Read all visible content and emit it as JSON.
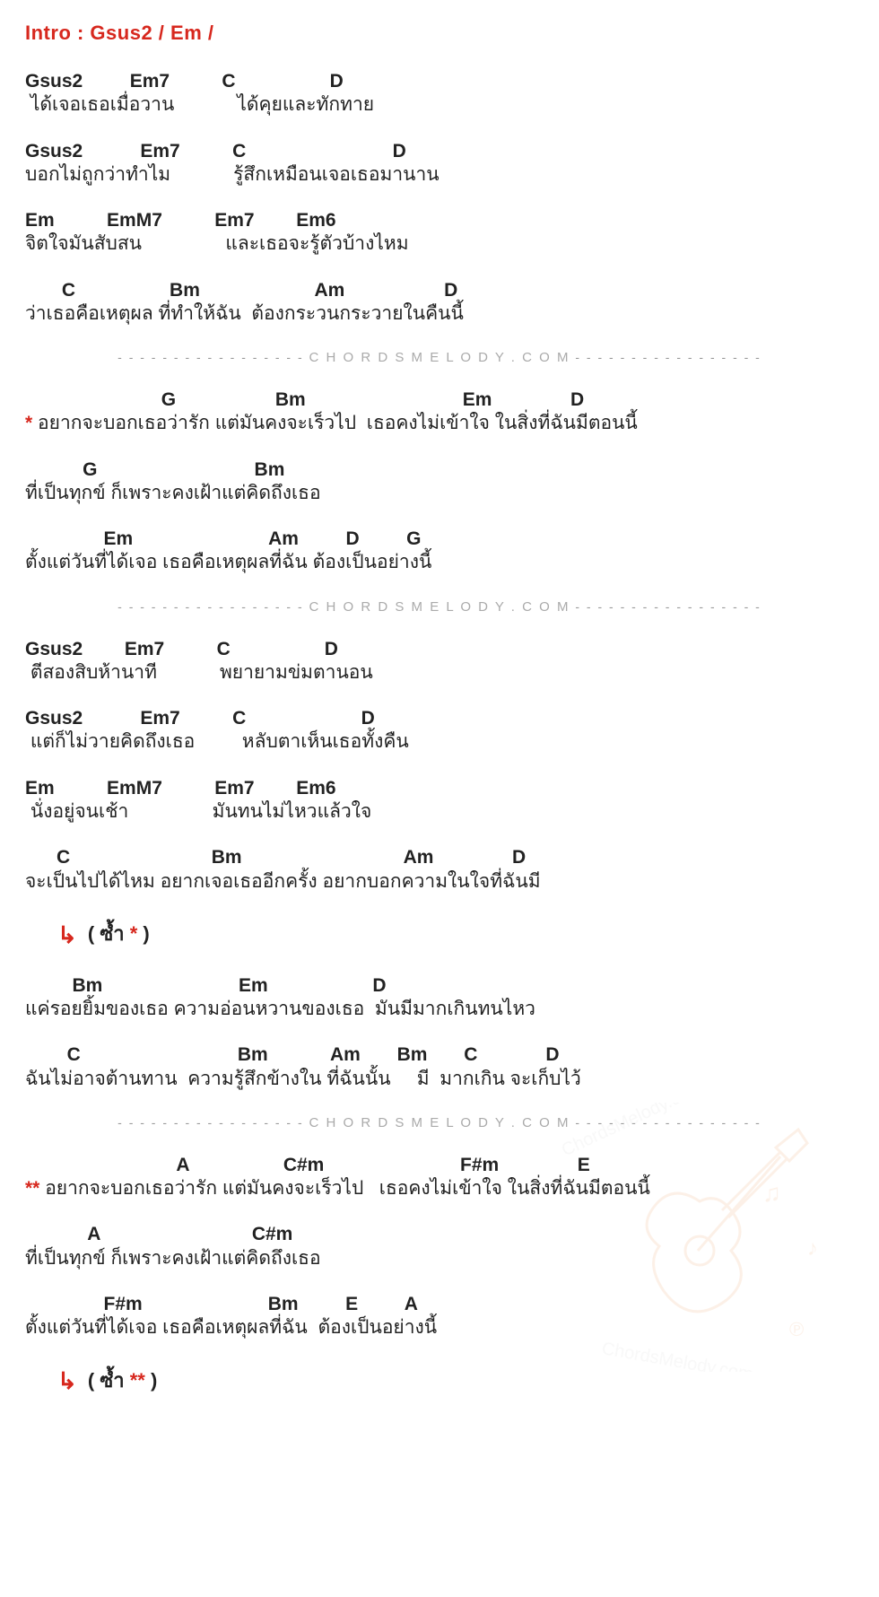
{
  "intro": "Intro :  Gsus2  /  Em  /",
  "sections": [
    {
      "lines": [
        {
          "chords": "Gsus2         Em7          C                  D",
          "lyrics": " ได้เจอเธอเมื่อวาน            ได้คุยและทักทาย"
        },
        {
          "chords": "Gsus2           Em7          C                            D",
          "lyrics": "บอกไม่ถูกว่าทำไม            รู้สึกเหมือนเจอเธอมานาน"
        },
        {
          "chords": "Em          EmM7          Em7        Em6",
          "lyrics": "จิตใจมันสับสน                และเธอจะรู้ตัวบ้างไหม"
        },
        {
          "chords": "       C                  Bm                      Am                   D",
          "lyrics": "ว่าเธอคือเหตุผล ที่ทำให้ฉัน  ต้องกระวนกระวายในคืนนี้"
        }
      ]
    },
    {
      "divider": true
    },
    {
      "lines": [
        {
          "chords": "                          G                   Bm                              Em               D",
          "lyrics": "<star>*</star> อยากจะบอกเธอว่ารัก แต่มันคงจะเร็วไป  เธอคงไม่เข้าใจ ในสิ่งที่ฉันมีตอนนี้"
        },
        {
          "chords": "           G                              Bm",
          "lyrics": "ที่เป็นทุกข์ ก็เพราะคงเฝ้าแต่คิดถึงเธอ"
        },
        {
          "chords": "               Em                          Am         D         G",
          "lyrics": "ตั้งแต่วันที่ได้เจอ เธอคือเหตุผลที่ฉัน ต้องเป็นอย่างนี้"
        }
      ]
    },
    {
      "divider": true
    },
    {
      "lines": [
        {
          "chords": "Gsus2        Em7          C                  D",
          "lyrics": " ตีสองสิบห้านาที            พยายามข่มตานอน"
        },
        {
          "chords": "Gsus2           Em7          C                      D",
          "lyrics": " แต่ก็ไม่วายคิดถึงเธอ         หลับตาเห็นเธอทั้งคืน"
        },
        {
          "chords": "Em          EmM7          Em7        Em6",
          "lyrics": " นั่งอยู่จนเช้า                มันทนไม่ไหวแล้วใจ"
        },
        {
          "chords": "      C                           Bm                               Am               D",
          "lyrics": "จะเป็นไปได้ไหม อยากเจอเธออีกครั้ง อยากบอกความในใจที่ฉันมี"
        }
      ]
    },
    {
      "repeat": "( ซ้ำ <star>*</star> )"
    },
    {
      "lines": [
        {
          "chords": "         Bm                          Em                    D",
          "lyrics": "แค่รอยยิ้มของเธอ ความอ่อนหวานของเธอ  มันมีมากเกินทนไหว"
        },
        {
          "chords": "        C                              Bm            Am       Bm       C             D",
          "lyrics": "ฉันไม่อาจต้านทาน  ความรู้สึกข้างใน ที่ฉันนั้น     มี  มากเกิน จะเก็บไว้"
        }
      ]
    },
    {
      "divider": true
    },
    {
      "lines": [
        {
          "chords": "                             A                  C#m                          F#m               E",
          "lyrics": "<star>**</star> อยากจะบอกเธอว่ารัก แต่มันคงจะเร็วไป   เธอคงไม่เข้าใจ ในสิ่งที่ฉันมีตอนนี้"
        },
        {
          "chords": "            A                             C#m",
          "lyrics": "ที่เป็นทุกข์ ก็เพราะคงเฝ้าแต่คิดถึงเธอ"
        },
        {
          "chords": "               F#m                        Bm         E         A",
          "lyrics": "ตั้งแต่วันที่ได้เจอ เธอคือเหตุผลที่ฉัน  ต้องเป็นอย่างนี้"
        }
      ]
    },
    {
      "repeat": "( ซ้ำ <star>**</star> )"
    }
  ],
  "divider_text": "- - - - - - - - - - - - - - - - -",
  "divider_watermark": "C H O R D S M E L O D Y . C O M",
  "colors": {
    "accent": "#d7281e",
    "text": "#222222",
    "divider": "#999999",
    "background": "#ffffff",
    "watermark_stroke": "#f0b88a",
    "watermark_text": "#dcdcdc"
  },
  "typography": {
    "intro_fontsize": 22,
    "chord_fontsize": 21,
    "lyric_fontsize": 21,
    "divider_fontsize": 14
  }
}
